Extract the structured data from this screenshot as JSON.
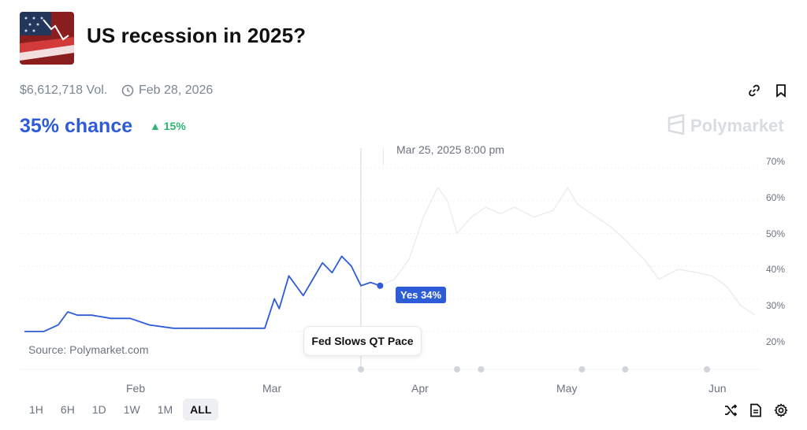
{
  "header": {
    "title": "US recession in 2025?",
    "volume": "$6,612,718 Vol.",
    "end_date": "Feb 28, 2026"
  },
  "summary": {
    "chance": "35% chance",
    "delta": "15%",
    "delta_direction": "up",
    "brand": "Polymarket",
    "colors": {
      "accent": "#2e5bd6",
      "positive": "#2bb673"
    }
  },
  "chart": {
    "hover_time": "Mar 25, 2025 8:00 pm",
    "hover_label": "Yes 34%",
    "source": "Source: Polymarket.com",
    "event_label": "Fed Slows QT Pace",
    "months": [
      "Feb",
      "Mar",
      "Apr",
      "May",
      "Jun"
    ],
    "y_ticks": [
      "70%",
      "60%",
      "50%",
      "40%",
      "30%",
      "20%"
    ]
  },
  "chart_data": {
    "type": "line",
    "ylim": [
      0.13,
      0.72
    ],
    "y_ticks": [
      0.2,
      0.3,
      0.4,
      0.5,
      0.6,
      0.7
    ],
    "series": [
      {
        "name": "Yes",
        "x": [
          "2025-01-10",
          "2025-01-14",
          "2025-01-17",
          "2025-01-19",
          "2025-01-21",
          "2025-01-24",
          "2025-01-28",
          "2025-02-01",
          "2025-02-05",
          "2025-02-10",
          "2025-02-15",
          "2025-02-20",
          "2025-02-25",
          "2025-03-01",
          "2025-03-03",
          "2025-03-04",
          "2025-03-06",
          "2025-03-09",
          "2025-03-11",
          "2025-03-13",
          "2025-03-15",
          "2025-03-17",
          "2025-03-19",
          "2025-03-21",
          "2025-03-23",
          "2025-03-25"
        ],
        "values": [
          0.2,
          0.2,
          0.22,
          0.26,
          0.25,
          0.25,
          0.24,
          0.24,
          0.22,
          0.21,
          0.21,
          0.21,
          0.21,
          0.21,
          0.3,
          0.27,
          0.37,
          0.31,
          0.36,
          0.41,
          0.38,
          0.43,
          0.4,
          0.34,
          0.35,
          0.34
        ]
      },
      {
        "name": "",
        "x": [
          "2025-03-25",
          "2025-03-28",
          "2025-03-31",
          "2025-04-03",
          "2025-04-06",
          "2025-04-08",
          "2025-04-10",
          "2025-04-13",
          "2025-04-16",
          "2025-04-19",
          "2025-04-22",
          "2025-04-26",
          "2025-04-30",
          "2025-05-03",
          "2025-05-05",
          "2025-05-08",
          "2025-05-12",
          "2025-05-15",
          "2025-05-19",
          "2025-05-22",
          "2025-05-26",
          "2025-05-30",
          "2025-06-02",
          "2025-06-05",
          "2025-06-08",
          "2025-06-11"
        ],
        "values": [
          0.34,
          0.36,
          0.42,
          0.55,
          0.64,
          0.6,
          0.5,
          0.55,
          0.58,
          0.56,
          0.58,
          0.55,
          0.57,
          0.64,
          0.59,
          0.56,
          0.52,
          0.48,
          0.42,
          0.36,
          0.39,
          0.38,
          0.37,
          0.34,
          0.28,
          0.25
        ]
      }
    ],
    "x_markers": [
      "2025-03-21",
      "2025-04-10",
      "2025-04-15",
      "2025-05-06",
      "2025-05-15",
      "2025-06-01"
    ]
  },
  "controls": {
    "ranges": [
      "1H",
      "6H",
      "1D",
      "1W",
      "1M",
      "ALL"
    ],
    "active_range": "ALL"
  }
}
